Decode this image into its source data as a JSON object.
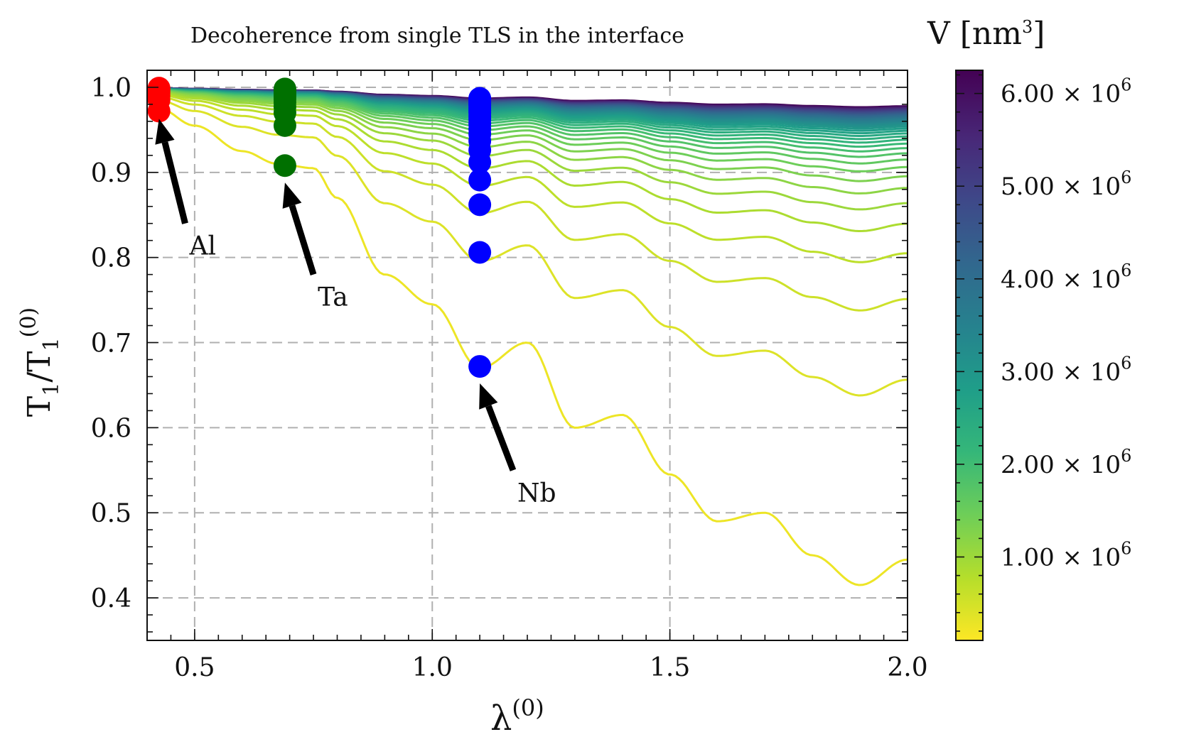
{
  "chart_data": {
    "type": "line",
    "title": "Decoherence from single TLS in the interface",
    "xlabel": "λ",
    "xlabel_sup": "(0)",
    "ylabel_main": "T",
    "ylabel_sub": "1",
    "ylabel_sep": "/T",
    "ylabel_sub2": "1",
    "ylabel_sup": "(0)",
    "xlim": [
      0.4,
      2.0
    ],
    "ylim": [
      0.35,
      1.02
    ],
    "x_ticks": [
      0.5,
      1.0,
      1.5,
      2.0
    ],
    "x_tick_labels": [
      "0.5",
      "1.0",
      "1.5",
      "2.0"
    ],
    "y_ticks": [
      0.4,
      0.5,
      0.6,
      0.7,
      0.8,
      0.9,
      1.0
    ],
    "y_tick_labels": [
      "0.4",
      "0.5",
      "0.6",
      "0.7",
      "0.8",
      "0.9",
      "1.0"
    ],
    "grid": true,
    "colorbar": {
      "label": "V [nm",
      "label_sup": "3",
      "label_end": "]",
      "range": [
        0.1,
        6.25
      ],
      "ticks": [
        1,
        2,
        3,
        4,
        5,
        6
      ],
      "tick_mantissa": [
        "1.00",
        "2.00",
        "3.00",
        "4.00",
        "5.00",
        "6.00"
      ],
      "tick_times": "×",
      "tick_base": "10",
      "tick_exp": "6",
      "colormap": "viridis_r",
      "colors": [
        "#fde725",
        "#b5de2b",
        "#6ece58",
        "#35b779",
        "#1f9e89",
        "#26828e",
        "#31688e",
        "#3e4989",
        "#482878",
        "#440154"
      ]
    },
    "series_family": {
      "description_values": "V from 0.25e6 to 6.25e6 nm^3; envelope 1 - k/V",
      "x": [
        0.4,
        0.425,
        0.5,
        0.6,
        0.675,
        0.75,
        0.8,
        0.9,
        1.0,
        1.1,
        1.2,
        1.3,
        1.4,
        1.5,
        1.6,
        1.7,
        1.8,
        1.9,
        2.0
      ],
      "lowest_curve_y": [
        0.985,
        0.975,
        0.955,
        0.925,
        0.91,
        0.905,
        0.87,
        0.78,
        0.745,
        0.67,
        0.7,
        0.6,
        0.615,
        0.545,
        0.49,
        0.5,
        0.45,
        0.415,
        0.445
      ],
      "v_min": 0.25,
      "v_max": 6.25,
      "count": 40
    },
    "markers": [
      {
        "material": "Al",
        "x": 0.425,
        "color": "#ff0000",
        "y": [
          0.972,
          0.985,
          0.99,
          0.993,
          0.995,
          0.997,
          0.998,
          0.999
        ]
      },
      {
        "material": "Ta",
        "x": 0.69,
        "color": "#007000",
        "y": [
          0.908,
          0.955,
          0.97,
          0.977,
          0.982,
          0.986,
          0.989,
          0.991,
          0.993,
          0.995,
          0.997,
          0.998
        ]
      },
      {
        "material": "Nb",
        "x": 1.1,
        "color": "#0000ff",
        "y": [
          0.672,
          0.806,
          0.862,
          0.891,
          0.912,
          0.926,
          0.937,
          0.945,
          0.951,
          0.957,
          0.962,
          0.966,
          0.97,
          0.973,
          0.976,
          0.979,
          0.981,
          0.983,
          0.985,
          0.987
        ]
      }
    ],
    "annotations": [
      {
        "text": "Al",
        "point": [
          0.425,
          0.963
        ],
        "label_at": [
          0.48,
          0.84
        ]
      },
      {
        "text": "Ta",
        "point": [
          0.69,
          0.888
        ],
        "label_at": [
          0.75,
          0.78
        ]
      },
      {
        "text": "Nb",
        "point": [
          1.1,
          0.652
        ],
        "label_at": [
          1.17,
          0.55
        ]
      }
    ],
    "annotation_color": "#000000",
    "frame_color": "#111111",
    "grid_color": "#b0b0b0"
  }
}
